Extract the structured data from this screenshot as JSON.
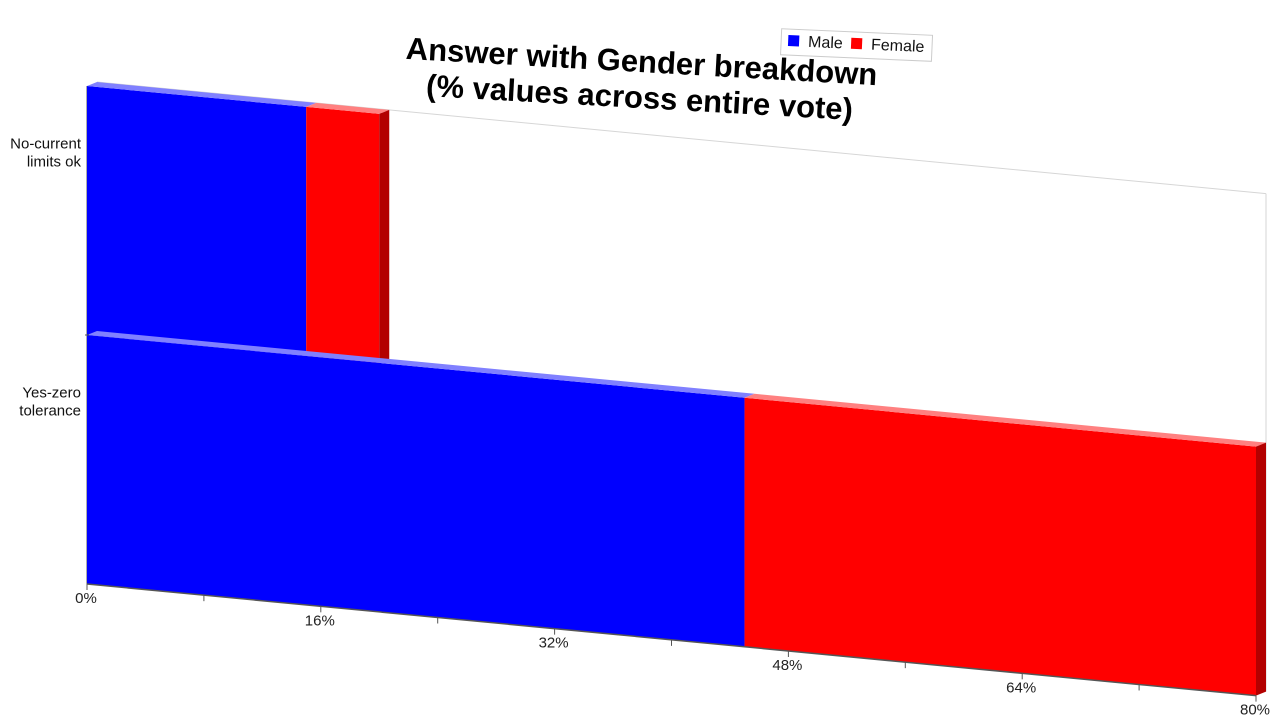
{
  "chart_data": {
    "type": "bar",
    "orientation": "horizontal",
    "stacked": true,
    "title": [
      "Answer with Gender breakdown",
      "(% values across entire vote)"
    ],
    "categories": [
      "No-current limits ok",
      "Yes-zero tolerance"
    ],
    "category_label_lines": [
      [
        "No-current",
        "limits ok"
      ],
      [
        "Yes-zero",
        "tolerance"
      ]
    ],
    "series": [
      {
        "name": "Male",
        "color": "#0000ff",
        "values": [
          15,
          45
        ]
      },
      {
        "name": "Female",
        "color": "#ff0000",
        "values": [
          5,
          35
        ]
      }
    ],
    "xlim": [
      0,
      80
    ],
    "xticks": [
      0,
      16,
      32,
      48,
      64,
      80
    ],
    "xtick_labels": [
      "0%",
      "16%",
      "32%",
      "48%",
      "64%",
      "80%"
    ],
    "legend_position": "top",
    "grid": false
  }
}
